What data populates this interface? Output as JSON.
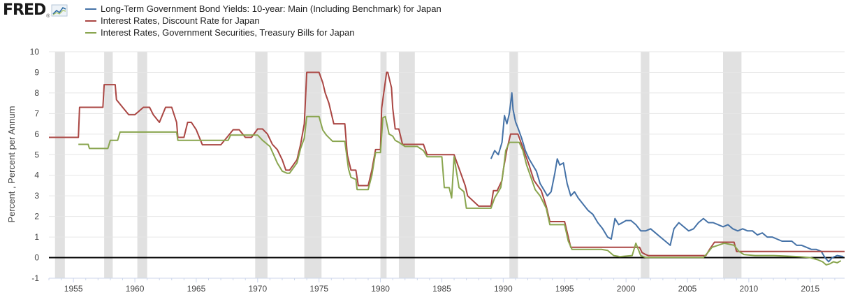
{
  "logo": {
    "text": "FRED",
    "sub": "®"
  },
  "colors": {
    "series1": "#4572a7",
    "series2": "#aa4643",
    "series3": "#89a54e",
    "recession": "#e1e1e1",
    "grid": "#e6e6e6",
    "zero_line": "#000000"
  },
  "legend": [
    {
      "label": "Long-Term Government Bond Yields: 10-year: Main (Including Benchmark) for Japan",
      "color": "#4572a7"
    },
    {
      "label": "Interest Rates, Discount Rate for Japan",
      "color": "#aa4643"
    },
    {
      "label": "Interest Rates, Government Securities, Treasury Bills for Japan",
      "color": "#89a54e"
    }
  ],
  "chart_data": {
    "type": "line",
    "title": "",
    "xlabel": "",
    "ylabel": "Percent , Percent per Annum",
    "xlim": [
      1953.0,
      2017.8
    ],
    "ylim": [
      -1,
      10
    ],
    "yticks": [
      -1,
      0,
      1,
      2,
      3,
      4,
      5,
      6,
      7,
      8,
      9,
      10
    ],
    "xticks": [
      1955,
      1960,
      1965,
      1970,
      1975,
      1980,
      1985,
      1990,
      1995,
      2000,
      2005,
      2010,
      2015
    ],
    "grid": "horizontal",
    "recessions": [
      [
        1953.5,
        1954.3
      ],
      [
        1957.5,
        1958.2
      ],
      [
        1960.2,
        1961.0
      ],
      [
        1969.8,
        1970.8
      ],
      [
        1973.8,
        1975.2
      ],
      [
        1980.0,
        1980.5
      ],
      [
        1981.5,
        1982.8
      ],
      [
        1990.5,
        1991.2
      ],
      [
        2001.2,
        2001.9
      ],
      [
        2007.9,
        2009.4
      ]
    ],
    "series": [
      {
        "name": "Long-Term Government Bond Yields: 10-year: Main (Including Benchmark) for Japan",
        "x": [
          1989.0,
          1989.3,
          1989.6,
          1989.9,
          1990.1,
          1990.3,
          1990.5,
          1990.7,
          1990.8,
          1991.0,
          1991.2,
          1991.5,
          1991.8,
          1992.1,
          1992.4,
          1992.7,
          1993.0,
          1993.3,
          1993.6,
          1993.9,
          1994.2,
          1994.4,
          1994.6,
          1994.9,
          1995.2,
          1995.5,
          1995.8,
          1996.1,
          1996.5,
          1996.9,
          1997.3,
          1997.7,
          1998.1,
          1998.5,
          1998.8,
          1999.1,
          1999.4,
          1999.7,
          2000.0,
          2000.4,
          2000.8,
          2001.2,
          2001.6,
          2002.0,
          2002.4,
          2002.8,
          2003.2,
          2003.6,
          2003.9,
          2004.3,
          2004.7,
          2005.1,
          2005.5,
          2005.9,
          2006.3,
          2006.7,
          2007.1,
          2007.5,
          2007.9,
          2008.3,
          2008.7,
          2009.1,
          2009.5,
          2009.9,
          2010.3,
          2010.7,
          2011.1,
          2011.5,
          2011.9,
          2012.3,
          2012.7,
          2013.1,
          2013.5,
          2013.9,
          2014.3,
          2014.7,
          2015.1,
          2015.5,
          2015.9,
          2016.2,
          2016.5,
          2016.8,
          2017.2,
          2017.7
        ],
        "values": [
          4.8,
          5.2,
          5.0,
          5.6,
          6.9,
          6.5,
          7.0,
          8.0,
          7.2,
          6.6,
          6.3,
          5.8,
          5.2,
          4.8,
          4.5,
          4.2,
          3.6,
          3.3,
          3.0,
          3.2,
          4.1,
          4.8,
          4.5,
          4.6,
          3.6,
          3.0,
          3.2,
          2.9,
          2.6,
          2.3,
          2.1,
          1.7,
          1.4,
          1.0,
          0.9,
          1.9,
          1.6,
          1.7,
          1.8,
          1.8,
          1.6,
          1.3,
          1.3,
          1.4,
          1.2,
          1.0,
          0.8,
          0.6,
          1.4,
          1.7,
          1.5,
          1.3,
          1.4,
          1.7,
          1.9,
          1.7,
          1.7,
          1.6,
          1.5,
          1.6,
          1.4,
          1.3,
          1.4,
          1.3,
          1.3,
          1.1,
          1.2,
          1.0,
          1.0,
          0.9,
          0.8,
          0.8,
          0.8,
          0.6,
          0.6,
          0.5,
          0.4,
          0.4,
          0.3,
          0.0,
          -0.2,
          0.0,
          0.1,
          0.05
        ]
      },
      {
        "name": "Interest Rates, Discount Rate for Japan",
        "x": [
          1953.0,
          1955.4,
          1955.5,
          1957.4,
          1957.5,
          1958.4,
          1958.5,
          1959.0,
          1959.5,
          1960.0,
          1960.7,
          1961.2,
          1961.5,
          1962.0,
          1962.5,
          1963.0,
          1963.4,
          1963.5,
          1964.0,
          1964.3,
          1964.6,
          1965.0,
          1965.5,
          1967.0,
          1967.5,
          1968.0,
          1968.5,
          1969.0,
          1969.5,
          1970.0,
          1970.4,
          1970.8,
          1971.0,
          1971.2,
          1971.6,
          1972.0,
          1972.3,
          1972.6,
          1973.2,
          1973.5,
          1973.8,
          1974.0,
          1975.0,
          1975.3,
          1975.5,
          1975.8,
          1976.2,
          1977.1,
          1977.3,
          1977.6,
          1978.0,
          1978.2,
          1979.0,
          1979.3,
          1979.6,
          1980.0,
          1980.1,
          1980.5,
          1980.6,
          1980.9,
          1981.0,
          1981.2,
          1981.5,
          1981.8,
          1982.0,
          1983.5,
          1983.8,
          1986.0,
          1986.3,
          1986.6,
          1986.9,
          1987.1,
          1988.0,
          1989.0,
          1989.2,
          1989.5,
          1989.9,
          1990.0,
          1990.3,
          1990.6,
          1991.2,
          1991.5,
          1991.8,
          1992.1,
          1992.5,
          1993.1,
          1993.5,
          1993.8,
          1995.0,
          1995.3,
          1995.5,
          2001.1,
          2001.3,
          2001.6,
          2001.8,
          2006.5,
          2006.8,
          2007.2,
          2008.8,
          2009.0,
          2017.8
        ],
        "values": [
          5.84,
          5.84,
          7.3,
          7.3,
          8.4,
          8.4,
          7.67,
          7.3,
          6.94,
          6.94,
          7.3,
          7.3,
          6.94,
          6.57,
          7.3,
          7.3,
          6.57,
          5.84,
          5.84,
          6.57,
          6.57,
          6.21,
          5.48,
          5.48,
          5.84,
          6.21,
          6.21,
          5.84,
          5.84,
          6.25,
          6.25,
          6.0,
          5.75,
          5.5,
          5.25,
          4.75,
          4.25,
          4.25,
          4.75,
          5.5,
          6.5,
          9.0,
          9.0,
          8.5,
          8.0,
          7.5,
          6.5,
          6.5,
          5.0,
          4.25,
          4.25,
          3.5,
          3.5,
          4.25,
          5.25,
          5.25,
          7.25,
          9.0,
          9.0,
          8.25,
          7.25,
          6.25,
          6.25,
          5.5,
          5.5,
          5.5,
          5.0,
          5.0,
          4.5,
          4.0,
          3.5,
          3.0,
          2.5,
          2.5,
          3.25,
          3.25,
          3.75,
          4.25,
          5.25,
          6.0,
          6.0,
          5.5,
          5.0,
          4.5,
          3.75,
          3.25,
          2.5,
          1.75,
          1.75,
          1.0,
          0.5,
          0.5,
          0.25,
          0.15,
          0.1,
          0.1,
          0.4,
          0.75,
          0.75,
          0.3,
          0.3
        ]
      },
      {
        "name": "Interest Rates, Government Securities, Treasury Bills for Japan",
        "x": [
          1955.4,
          1956.2,
          1956.3,
          1957.8,
          1958.0,
          1958.6,
          1958.8,
          1963.4,
          1963.5,
          1967.6,
          1967.8,
          1970.0,
          1970.4,
          1971.0,
          1971.3,
          1971.6,
          1972.0,
          1972.4,
          1972.6,
          1973.2,
          1973.5,
          1973.8,
          1974.0,
          1975.0,
          1975.3,
          1975.6,
          1976.1,
          1977.1,
          1977.4,
          1977.6,
          1978.0,
          1978.1,
          1979.0,
          1979.3,
          1979.6,
          1980.0,
          1980.2,
          1980.4,
          1980.7,
          1981.0,
          1981.2,
          1981.5,
          1982.0,
          1983.0,
          1983.5,
          1983.8,
          1985.0,
          1985.2,
          1985.6,
          1985.8,
          1986.0,
          1986.4,
          1986.8,
          1987.0,
          1989.0,
          1989.3,
          1989.8,
          1990.0,
          1990.2,
          1990.5,
          1991.3,
          1991.6,
          1991.9,
          1992.2,
          1992.6,
          1993.0,
          1993.5,
          1993.8,
          1995.0,
          1995.3,
          1995.6,
          1998.0,
          1998.5,
          1999.0,
          1999.5,
          2000.5,
          2000.8,
          2001.0,
          2001.2,
          2001.4,
          2001.6,
          2006.3,
          2006.6,
          2007.0,
          2008.0,
          2008.8,
          2009.2,
          2009.6,
          2010.5,
          2012.0,
          2014.0,
          2015.0,
          2015.6,
          2016.0,
          2016.3,
          2016.6,
          2016.9,
          2017.2,
          2017.5
        ],
        "values": [
          5.5,
          5.5,
          5.3,
          5.3,
          5.7,
          5.7,
          6.1,
          6.1,
          5.7,
          5.7,
          5.95,
          5.95,
          5.7,
          5.4,
          5.0,
          4.6,
          4.2,
          4.1,
          4.1,
          4.6,
          5.3,
          5.8,
          6.85,
          6.85,
          6.2,
          5.95,
          5.65,
          5.65,
          4.3,
          3.9,
          3.8,
          3.3,
          3.3,
          4.0,
          5.1,
          5.1,
          6.8,
          6.85,
          6.0,
          5.9,
          5.7,
          5.6,
          5.4,
          5.4,
          5.2,
          4.9,
          4.9,
          3.4,
          3.4,
          2.9,
          4.9,
          3.4,
          3.2,
          2.4,
          2.4,
          2.9,
          3.4,
          4.2,
          5.2,
          5.6,
          5.6,
          5.2,
          4.5,
          4.0,
          3.3,
          3.0,
          2.4,
          1.6,
          1.6,
          0.8,
          0.4,
          0.4,
          0.35,
          0.1,
          0.05,
          0.1,
          0.7,
          0.4,
          0.1,
          0.05,
          0.01,
          0.01,
          0.2,
          0.5,
          0.7,
          0.6,
          0.3,
          0.15,
          0.1,
          0.1,
          0.05,
          0.0,
          -0.1,
          -0.2,
          -0.35,
          -0.3,
          -0.2,
          -0.25,
          -0.15
        ]
      }
    ]
  }
}
